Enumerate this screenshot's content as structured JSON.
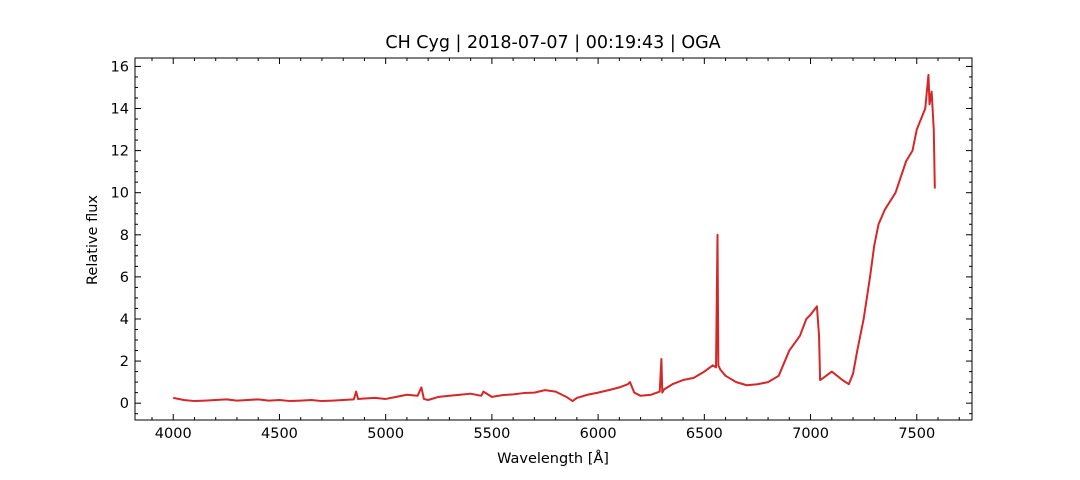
{
  "chart_data": {
    "type": "line",
    "title": "CH Cyg | 2018-07-07 | 00:19:43 | OGA",
    "xlabel": "Wavelength [Å]",
    "ylabel": "Relative flux",
    "xlim": [
      3820,
      7760
    ],
    "ylim": [
      -0.8,
      16.4
    ],
    "xticks": [
      4000,
      4500,
      5000,
      5500,
      6000,
      6500,
      7000,
      7500
    ],
    "yticks": [
      0,
      2,
      4,
      6,
      8,
      10,
      12,
      14,
      16
    ],
    "xtick_labels": [
      "4000",
      "4500",
      "5000",
      "5500",
      "6000",
      "6500",
      "7000",
      "7500"
    ],
    "ytick_labels": [
      "0",
      "2",
      "4",
      "6",
      "8",
      "10",
      "12",
      "14",
      "16"
    ],
    "grid": false,
    "line_color": "#d62728",
    "series": [
      {
        "x": [
          4000,
          4050,
          4100,
          4150,
          4200,
          4250,
          4300,
          4350,
          4400,
          4450,
          4500,
          4550,
          4600,
          4650,
          4700,
          4750,
          4800,
          4850,
          4861,
          4870,
          4900,
          4950,
          5000,
          5050,
          5100,
          5150,
          5168,
          5180,
          5200,
          5250,
          5300,
          5350,
          5400,
          5450,
          5460,
          5500,
          5550,
          5600,
          5650,
          5700,
          5750,
          5800,
          5850,
          5880,
          5900,
          5950,
          6000,
          6050,
          6100,
          6140,
          6150,
          6170,
          6200,
          6250,
          6290,
          6298,
          6302,
          6310,
          6350,
          6400,
          6450,
          6500,
          6540,
          6555,
          6562,
          6566,
          6575,
          6600,
          6650,
          6700,
          6750,
          6800,
          6850,
          6900,
          6950,
          6980,
          7000,
          7030,
          7040,
          7045,
          7060,
          7100,
          7150,
          7180,
          7200,
          7220,
          7250,
          7280,
          7300,
          7320,
          7350,
          7400,
          7450,
          7480,
          7500,
          7520,
          7540,
          7555,
          7560,
          7570,
          7580,
          7585
        ],
        "y": [
          0.25,
          0.15,
          0.1,
          0.12,
          0.15,
          0.18,
          0.12,
          0.15,
          0.18,
          0.12,
          0.15,
          0.1,
          0.12,
          0.15,
          0.1,
          0.12,
          0.15,
          0.18,
          0.55,
          0.2,
          0.22,
          0.25,
          0.2,
          0.3,
          0.4,
          0.35,
          0.75,
          0.2,
          0.15,
          0.3,
          0.35,
          0.4,
          0.45,
          0.35,
          0.55,
          0.3,
          0.38,
          0.42,
          0.48,
          0.5,
          0.62,
          0.55,
          0.3,
          0.1,
          0.25,
          0.4,
          0.5,
          0.62,
          0.75,
          0.9,
          1.0,
          0.5,
          0.35,
          0.4,
          0.55,
          2.1,
          0.5,
          0.65,
          0.9,
          1.1,
          1.2,
          1.5,
          1.8,
          1.7,
          8.0,
          1.8,
          1.6,
          1.3,
          1.0,
          0.85,
          0.9,
          1.0,
          1.3,
          2.5,
          3.2,
          4.0,
          4.2,
          4.6,
          3.2,
          1.1,
          1.2,
          1.5,
          1.1,
          0.9,
          1.4,
          2.5,
          4.0,
          6.0,
          7.5,
          8.5,
          9.2,
          10.0,
          11.5,
          12.0,
          13.0,
          13.5,
          14.0,
          15.6,
          14.2,
          14.8,
          13.0,
          10.2
        ]
      }
    ]
  }
}
